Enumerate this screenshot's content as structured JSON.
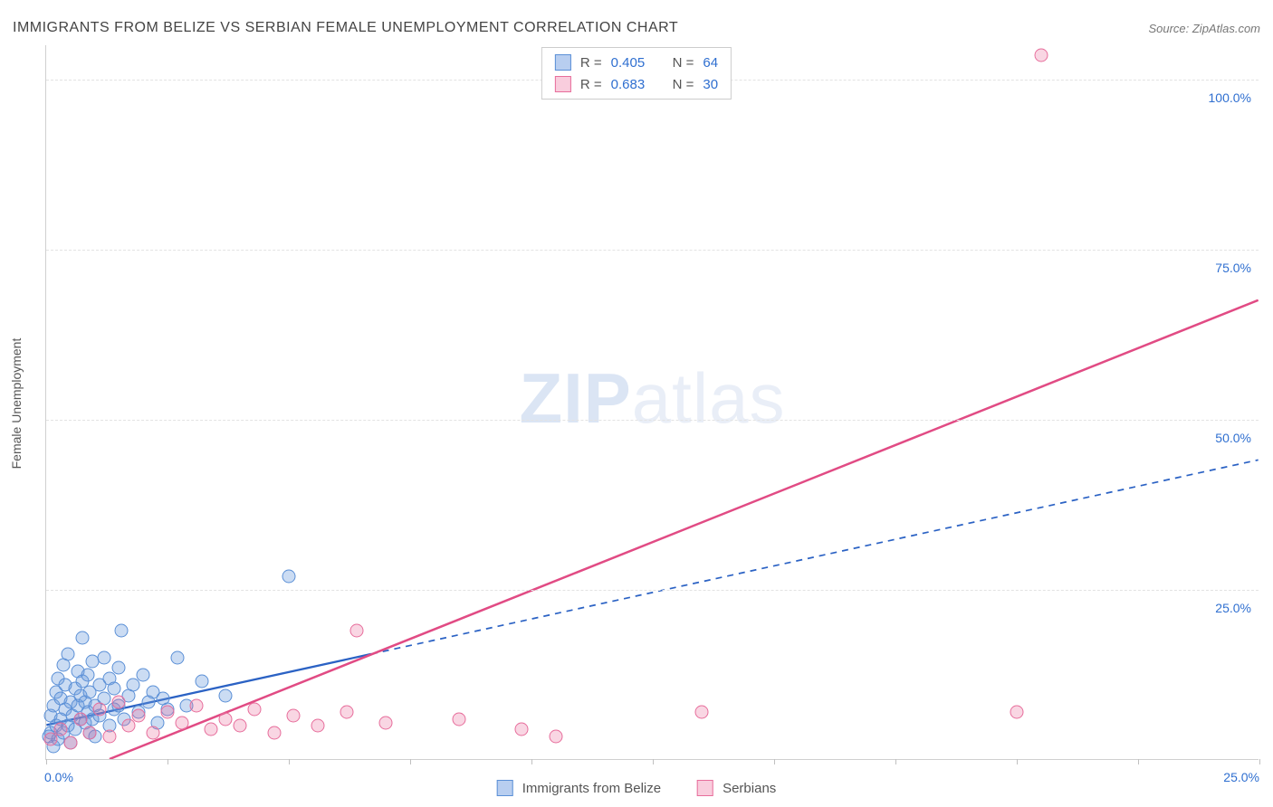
{
  "title": "IMMIGRANTS FROM BELIZE VS SERBIAN FEMALE UNEMPLOYMENT CORRELATION CHART",
  "source": "Source: ZipAtlas.com",
  "watermark": "ZIPatlas",
  "chart": {
    "type": "scatter",
    "background_color": "#ffffff",
    "grid_color": "#e3e3e3",
    "axis_color": "#d0d0d0",
    "tick_color": "#2f6fd0",
    "ylabel": "Female Unemployment",
    "ylabel_fontsize": 14,
    "xlim": [
      0,
      25
    ],
    "ylim": [
      0,
      105
    ],
    "xtick_positions": [
      0,
      2.5,
      5,
      7.5,
      10,
      12.5,
      15,
      17.5,
      20,
      22.5,
      25
    ],
    "xtick_labels": [
      "0.0%",
      "",
      "",
      "",
      "",
      "",
      "",
      "",
      "",
      "",
      "25.0%"
    ],
    "ytick_positions": [
      25,
      50,
      75,
      100
    ],
    "ytick_labels": [
      "25.0%",
      "50.0%",
      "75.0%",
      "100.0%"
    ],
    "marker_radius": 7.5,
    "marker_stroke_width": 1.2,
    "series": [
      {
        "name": "Immigrants from Belize",
        "color_fill": "rgba(106,156,220,0.35)",
        "color_stroke": "#5a8fd6",
        "swatch_fill": "#b8cef0",
        "swatch_border": "#5a8fd6",
        "R": "0.405",
        "N": "64",
        "trend": {
          "color": "#2b62c4",
          "width": 2.3,
          "dash_solid_until_x": 6.7,
          "x1": 0,
          "y1": 5.0,
          "x2": 25,
          "y2": 44.0
        },
        "points": [
          [
            0.05,
            3.5
          ],
          [
            0.1,
            4.0
          ],
          [
            0.1,
            6.5
          ],
          [
            0.15,
            2.0
          ],
          [
            0.15,
            8.0
          ],
          [
            0.2,
            5.0
          ],
          [
            0.2,
            10.0
          ],
          [
            0.25,
            3.0
          ],
          [
            0.25,
            12.0
          ],
          [
            0.3,
            6.0
          ],
          [
            0.3,
            9.0
          ],
          [
            0.35,
            4.0
          ],
          [
            0.35,
            14.0
          ],
          [
            0.4,
            7.5
          ],
          [
            0.4,
            11.0
          ],
          [
            0.45,
            5.0
          ],
          [
            0.45,
            15.5
          ],
          [
            0.5,
            8.5
          ],
          [
            0.5,
            2.5
          ],
          [
            0.55,
            6.5
          ],
          [
            0.6,
            10.5
          ],
          [
            0.6,
            4.5
          ],
          [
            0.65,
            8.0
          ],
          [
            0.65,
            13.0
          ],
          [
            0.7,
            6.0
          ],
          [
            0.7,
            9.5
          ],
          [
            0.75,
            11.5
          ],
          [
            0.75,
            18.0
          ],
          [
            0.8,
            5.5
          ],
          [
            0.8,
            8.5
          ],
          [
            0.85,
            7.0
          ],
          [
            0.85,
            12.5
          ],
          [
            0.9,
            4.0
          ],
          [
            0.9,
            10.0
          ],
          [
            0.95,
            6.0
          ],
          [
            0.95,
            14.5
          ],
          [
            1.0,
            8.0
          ],
          [
            1.0,
            3.5
          ],
          [
            1.1,
            11.0
          ],
          [
            1.1,
            6.5
          ],
          [
            1.2,
            15.0
          ],
          [
            1.2,
            9.0
          ],
          [
            1.3,
            5.0
          ],
          [
            1.3,
            12.0
          ],
          [
            1.4,
            7.5
          ],
          [
            1.4,
            10.5
          ],
          [
            1.5,
            8.0
          ],
          [
            1.5,
            13.5
          ],
          [
            1.55,
            19.0
          ],
          [
            1.6,
            6.0
          ],
          [
            1.7,
            9.5
          ],
          [
            1.8,
            11.0
          ],
          [
            1.9,
            7.0
          ],
          [
            2.0,
            12.5
          ],
          [
            2.1,
            8.5
          ],
          [
            2.2,
            10.0
          ],
          [
            2.3,
            5.5
          ],
          [
            2.4,
            9.0
          ],
          [
            2.5,
            7.5
          ],
          [
            2.7,
            15.0
          ],
          [
            2.9,
            8.0
          ],
          [
            3.2,
            11.5
          ],
          [
            3.7,
            9.5
          ],
          [
            5.0,
            27.0
          ]
        ]
      },
      {
        "name": "Serbians",
        "color_fill": "rgba(232,109,155,0.28)",
        "color_stroke": "#e76d9b",
        "swatch_fill": "#f9cddd",
        "swatch_border": "#e76d9b",
        "R": "0.683",
        "N": "30",
        "trend": {
          "color": "#e14b84",
          "width": 2.5,
          "dash_solid_until_x": 25,
          "x1": 1.3,
          "y1": 0,
          "x2": 25,
          "y2": 67.5
        },
        "points": [
          [
            0.1,
            3.0
          ],
          [
            0.3,
            4.5
          ],
          [
            0.5,
            2.5
          ],
          [
            0.7,
            6.0
          ],
          [
            0.9,
            4.0
          ],
          [
            1.1,
            7.5
          ],
          [
            1.3,
            3.5
          ],
          [
            1.5,
            8.5
          ],
          [
            1.7,
            5.0
          ],
          [
            1.9,
            6.5
          ],
          [
            2.2,
            4.0
          ],
          [
            2.5,
            7.0
          ],
          [
            2.8,
            5.5
          ],
          [
            3.1,
            8.0
          ],
          [
            3.4,
            4.5
          ],
          [
            3.7,
            6.0
          ],
          [
            4.0,
            5.0
          ],
          [
            4.3,
            7.5
          ],
          [
            4.7,
            4.0
          ],
          [
            5.1,
            6.5
          ],
          [
            5.6,
            5.0
          ],
          [
            6.2,
            7.0
          ],
          [
            6.4,
            19.0
          ],
          [
            7.0,
            5.5
          ],
          [
            8.5,
            6.0
          ],
          [
            9.8,
            4.5
          ],
          [
            10.5,
            3.5
          ],
          [
            13.5,
            7.0
          ],
          [
            20.0,
            7.0
          ],
          [
            20.5,
            103.5
          ]
        ]
      }
    ]
  },
  "legend_bottom": [
    {
      "label": "Immigrants from Belize",
      "fill": "#b8cef0",
      "border": "#5a8fd6"
    },
    {
      "label": "Serbians",
      "fill": "#f9cddd",
      "border": "#e76d9b"
    }
  ]
}
